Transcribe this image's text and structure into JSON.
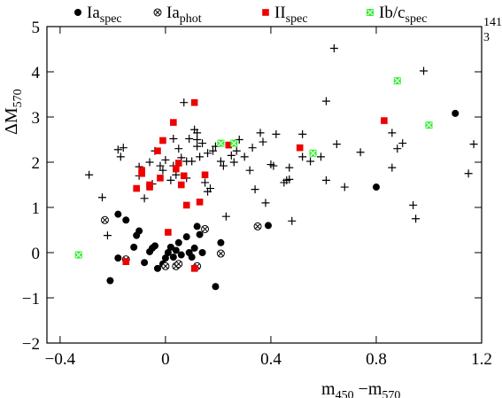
{
  "chart_data": {
    "type": "scatter",
    "title": "",
    "xlabel": {
      "base": "m",
      "sub1": "450",
      "mid": " −m",
      "sub2": "570"
    },
    "ylabel": {
      "base": "ΔM",
      "sub": "570"
    },
    "xlim": [
      -0.45,
      1.2
    ],
    "ylim": [
      -2,
      5
    ],
    "xticks": [
      -0.4,
      0,
      0.4,
      0.8,
      1.2
    ],
    "xtick_labels": [
      "−0.4",
      "0",
      "0.4",
      "0.8",
      "1.2"
    ],
    "yticks": [
      -2,
      -1,
      0,
      1,
      2,
      3,
      4,
      5
    ],
    "ytick_labels": [
      "−2",
      "−1",
      "0",
      "1",
      "2",
      "3",
      "4",
      "5"
    ],
    "annotation": {
      "line1": "141",
      "line2": "3"
    },
    "legend": [
      {
        "series": "Ia_spec",
        "base": "Ia",
        "sub": "spec",
        "marker": "filled-circle",
        "color": "#000000"
      },
      {
        "series": "Ia_phot",
        "base": "Ia",
        "sub": "phot",
        "marker": "circled-x",
        "color": "#000000"
      },
      {
        "series": "II_spec",
        "base": "II",
        "sub": "spec",
        "marker": "filled-square",
        "color": "#ee0000"
      },
      {
        "series": "Ibc_spec",
        "base": "Ib/c",
        "sub": "spec",
        "marker": "boxed-x",
        "color": "#33ee33"
      }
    ],
    "series": [
      {
        "key": "plus",
        "marker": "plus",
        "color": "#000000",
        "points": [
          [
            -0.29,
            1.72
          ],
          [
            -0.24,
            1.22
          ],
          [
            -0.22,
            0.38
          ],
          [
            -0.18,
            2.28
          ],
          [
            -0.17,
            2.12
          ],
          [
            -0.16,
            2.32
          ],
          [
            -0.1,
            1.9
          ],
          [
            -0.1,
            1.7
          ],
          [
            -0.08,
            1.2
          ],
          [
            -0.06,
            2.0
          ],
          [
            -0.05,
            1.52
          ],
          [
            -0.04,
            2.25
          ],
          [
            -0.02,
            1.92
          ],
          [
            -0.01,
            1.82
          ],
          [
            0.0,
            2.05
          ],
          [
            0.02,
            1.6
          ],
          [
            0.03,
            1.92
          ],
          [
            0.03,
            2.52
          ],
          [
            0.04,
            1.72
          ],
          [
            0.05,
            2.3
          ],
          [
            0.06,
            2.1
          ],
          [
            0.07,
            3.32
          ],
          [
            0.08,
            2.02
          ],
          [
            0.08,
            1.65
          ],
          [
            0.09,
            2.52
          ],
          [
            0.1,
            2.02
          ],
          [
            0.11,
            2.72
          ],
          [
            0.12,
            2.65
          ],
          [
            0.12,
            2.35
          ],
          [
            0.12,
            2.5
          ],
          [
            0.13,
            2.12
          ],
          [
            0.14,
            2.42
          ],
          [
            0.15,
            1.55
          ],
          [
            0.16,
            1.35
          ],
          [
            0.16,
            2.2
          ],
          [
            0.17,
            1.42
          ],
          [
            0.18,
            2.25
          ],
          [
            0.19,
            2.35
          ],
          [
            0.21,
            2.02
          ],
          [
            0.22,
            1.92
          ],
          [
            0.23,
            0.8
          ],
          [
            0.25,
            2.15
          ],
          [
            0.26,
            2.0
          ],
          [
            0.27,
            2.25
          ],
          [
            0.28,
            2.5
          ],
          [
            0.3,
            2.12
          ],
          [
            0.32,
            1.82
          ],
          [
            0.33,
            2.32
          ],
          [
            0.34,
            1.4
          ],
          [
            0.36,
            2.65
          ],
          [
            0.37,
            2.45
          ],
          [
            0.38,
            1.1
          ],
          [
            0.4,
            1.95
          ],
          [
            0.41,
            1.92
          ],
          [
            0.42,
            2.62
          ],
          [
            0.45,
            1.55
          ],
          [
            0.46,
            1.6
          ],
          [
            0.47,
            1.62
          ],
          [
            0.47,
            1.88
          ],
          [
            0.48,
            0.7
          ],
          [
            0.52,
            2.62
          ],
          [
            0.52,
            2.12
          ],
          [
            0.55,
            2.02
          ],
          [
            0.59,
            2.12
          ],
          [
            0.61,
            1.6
          ],
          [
            0.61,
            3.35
          ],
          [
            0.64,
            4.52
          ],
          [
            0.65,
            2.4
          ],
          [
            0.68,
            1.45
          ],
          [
            0.74,
            2.22
          ],
          [
            0.86,
            2.65
          ],
          [
            0.86,
            1.88
          ],
          [
            0.88,
            2.3
          ],
          [
            0.9,
            2.42
          ],
          [
            0.94,
            1.05
          ],
          [
            0.95,
            0.75
          ],
          [
            0.98,
            4.02
          ],
          [
            1.15,
            1.75
          ],
          [
            1.17,
            2.4
          ]
        ]
      },
      {
        "key": "Ia_spec",
        "marker": "filled-circle",
        "color": "#000000",
        "points": [
          [
            -0.21,
            -0.62
          ],
          [
            -0.18,
            -0.12
          ],
          [
            -0.18,
            0.85
          ],
          [
            -0.15,
            0.72
          ],
          [
            -0.12,
            0.12
          ],
          [
            -0.11,
            0.38
          ],
          [
            -0.1,
            0.48
          ],
          [
            -0.08,
            -0.22
          ],
          [
            -0.06,
            0.02
          ],
          [
            -0.05,
            0.1
          ],
          [
            -0.04,
            0.15
          ],
          [
            -0.03,
            -0.35
          ],
          [
            -0.01,
            -0.25
          ],
          [
            0.0,
            -0.12
          ],
          [
            0.01,
            0.0
          ],
          [
            0.02,
            0.12
          ],
          [
            0.03,
            -0.1
          ],
          [
            0.04,
            0.05
          ],
          [
            0.05,
            0.22
          ],
          [
            0.06,
            -0.05
          ],
          [
            0.08,
            0.35
          ],
          [
            0.09,
            0.0
          ],
          [
            0.1,
            -0.1
          ],
          [
            0.11,
            0.1
          ],
          [
            0.12,
            0.58
          ],
          [
            0.13,
            0.4
          ],
          [
            0.14,
            0.0
          ],
          [
            0.19,
            -0.75
          ],
          [
            0.21,
            0.22
          ],
          [
            0.39,
            0.6
          ],
          [
            0.8,
            1.45
          ],
          [
            1.1,
            3.08
          ]
        ]
      },
      {
        "key": "Ia_phot",
        "marker": "circled-x",
        "color": "#000000",
        "points": [
          [
            -0.23,
            0.72
          ],
          [
            -0.15,
            -0.15
          ],
          [
            0.0,
            -0.3
          ],
          [
            0.04,
            -0.3
          ],
          [
            0.05,
            -0.25
          ],
          [
            0.12,
            -0.3
          ],
          [
            0.15,
            0.52
          ],
          [
            0.21,
            -0.02
          ],
          [
            0.35,
            0.58
          ]
        ]
      },
      {
        "key": "II_spec",
        "marker": "filled-square",
        "color": "#ee0000",
        "points": [
          [
            -0.15,
            -0.2
          ],
          [
            -0.11,
            1.42
          ],
          [
            -0.09,
            1.82
          ],
          [
            -0.09,
            1.75
          ],
          [
            -0.06,
            1.5
          ],
          [
            -0.06,
            1.45
          ],
          [
            -0.03,
            2.25
          ],
          [
            -0.02,
            1.65
          ],
          [
            -0.01,
            2.48
          ],
          [
            0.01,
            0.45
          ],
          [
            0.03,
            2.88
          ],
          [
            0.04,
            1.85
          ],
          [
            0.05,
            1.98
          ],
          [
            0.06,
            1.5
          ],
          [
            0.07,
            1.7
          ],
          [
            0.08,
            1.05
          ],
          [
            0.11,
            -0.35
          ],
          [
            0.11,
            3.32
          ],
          [
            0.13,
            1.12
          ],
          [
            0.15,
            1.72
          ],
          [
            0.24,
            2.38
          ],
          [
            0.51,
            2.32
          ],
          [
            0.83,
            2.92
          ]
        ]
      },
      {
        "key": "Ibc_spec",
        "marker": "boxed-x",
        "color": "#33ee33",
        "points": [
          [
            -0.33,
            -0.05
          ],
          [
            0.21,
            2.42
          ],
          [
            0.26,
            2.42
          ],
          [
            0.56,
            2.2
          ],
          [
            0.88,
            3.8
          ],
          [
            1.0,
            2.82
          ]
        ]
      }
    ]
  }
}
